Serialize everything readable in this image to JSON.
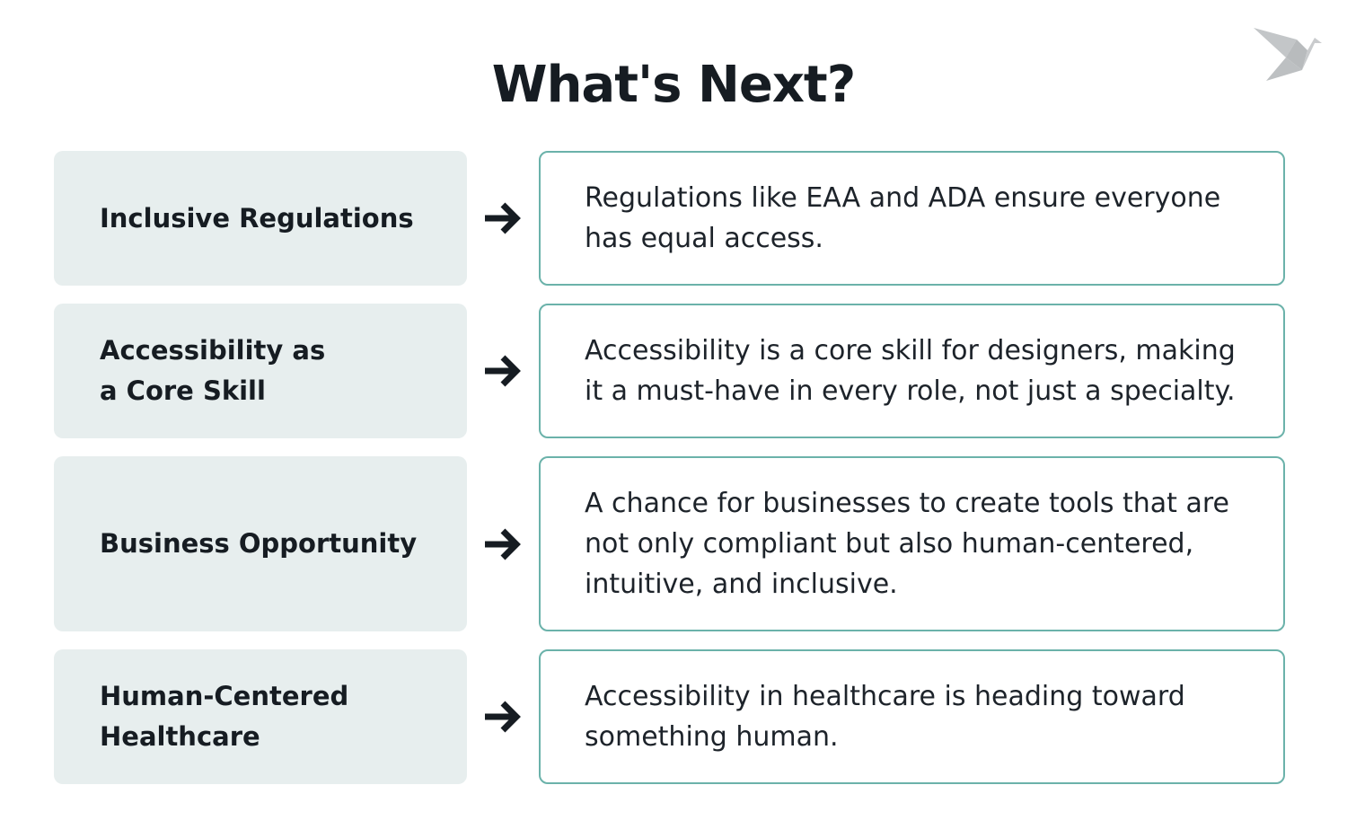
{
  "title": "What's Next?",
  "logo_icon": "origami-bird-icon",
  "colors": {
    "label_bg": "#e7eeee",
    "border": "#6bb2aa",
    "text": "#161c22"
  },
  "rows": [
    {
      "label": "Inclusive Regulations",
      "description": "Regulations like EAA and ADA ensure everyone has equal access."
    },
    {
      "label": "Accessibility as a Core Skill",
      "description": "Accessibility is a core skill for designers, making it a must-have in every role, not just a specialty."
    },
    {
      "label": "Business Opportunity",
      "description": "A chance for businesses to create tools that are not only compliant but also human-centered, intuitive, and inclusive."
    },
    {
      "label": "Human-Centered Healthcare",
      "description": "Accessibility in healthcare is heading toward something human."
    }
  ]
}
